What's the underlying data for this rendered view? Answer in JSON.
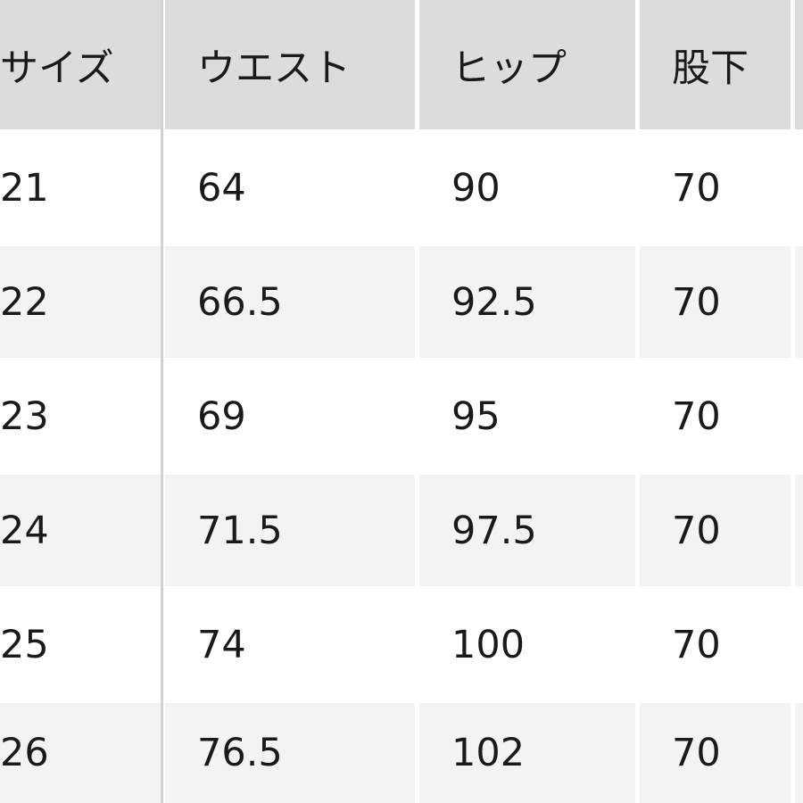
{
  "table": {
    "headers": [
      "サイズ",
      "ウエスト",
      "ヒップ",
      "股下",
      ""
    ],
    "rows": [
      [
        "21",
        "64",
        "90",
        "70"
      ],
      [
        "22",
        "66.5",
        "92.5",
        "70"
      ],
      [
        "23",
        "69",
        "95",
        "70"
      ],
      [
        "24",
        "71.5",
        "97.5",
        "70"
      ],
      [
        "25",
        "74",
        "100",
        "70"
      ],
      [
        "26",
        "76.5",
        "102",
        "70"
      ]
    ]
  },
  "colors": {
    "header_bg": "#dcdcdc",
    "alt_row_bg": "#f3f3f3",
    "divider": "#d2d2d2"
  }
}
